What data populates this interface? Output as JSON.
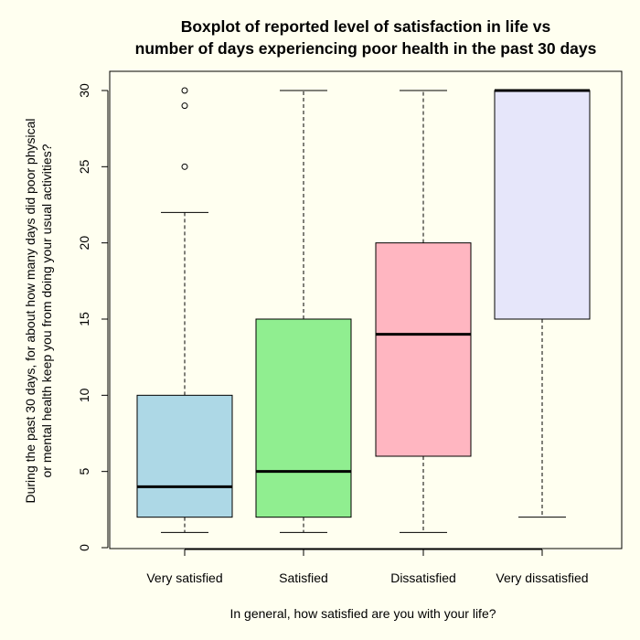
{
  "chart_data": {
    "type": "boxplot",
    "title": [
      "Boxplot of reported level of satisfaction in life vs",
      "number of days experiencing poor health in the past 30 days"
    ],
    "xlabel": "In general, how satisfied are you with your life?",
    "ylabel": [
      "During the past 30 days, for about how many days did poor physical",
      "or mental health keep you from doing your usual activities?"
    ],
    "ylim": [
      0,
      30
    ],
    "yticks": [
      0,
      5,
      10,
      15,
      20,
      25,
      30
    ],
    "grid": false,
    "categories": [
      "Very satisfied",
      "Satisfied",
      "Dissatisfied",
      "Very dissatisfied"
    ],
    "boxes": [
      {
        "category": "Very satisfied",
        "whisker_low": 1,
        "q1": 2,
        "median": 4,
        "q3": 10,
        "whisker_high": 22,
        "outliers": [
          25,
          29,
          30
        ],
        "color": "#ADD8E6"
      },
      {
        "category": "Satisfied",
        "whisker_low": 1,
        "q1": 2,
        "median": 5,
        "q3": 15,
        "whisker_high": 30,
        "outliers": [],
        "color": "#90EE90"
      },
      {
        "category": "Dissatisfied",
        "whisker_low": 1,
        "q1": 6,
        "median": 14,
        "q3": 20,
        "whisker_high": 30,
        "outliers": [],
        "color": "#FFB6C1"
      },
      {
        "category": "Very dissatisfied",
        "whisker_low": 2,
        "q1": 15,
        "median": 30,
        "q3": 30,
        "whisker_high": 30,
        "outliers": [],
        "color": "#E6E6FA"
      }
    ]
  }
}
